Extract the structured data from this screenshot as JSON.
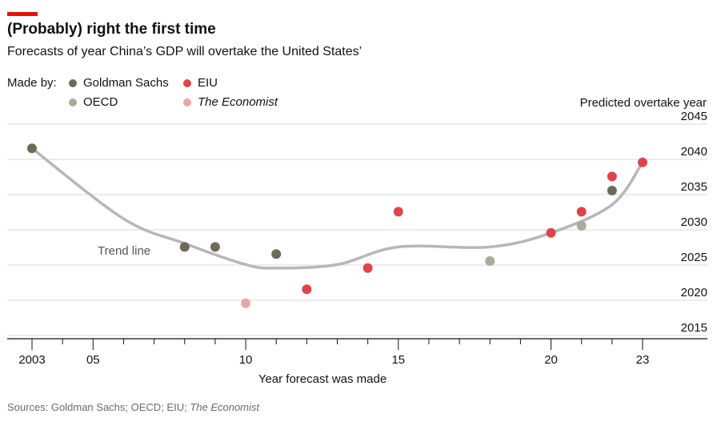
{
  "title": "(Probably) right the first time",
  "subtitle": "Forecasts of year China’s GDP will overtake the United States’",
  "legend": {
    "made_by_label": "Made by:",
    "items": [
      {
        "name": "Goldman Sachs",
        "color": "#6e6a58",
        "italic": false
      },
      {
        "name": "EIU",
        "color": "#e0444a",
        "italic": false
      },
      {
        "name": "OECD",
        "color": "#aeaa98",
        "italic": false
      },
      {
        "name": "The Economist",
        "color": "#e8a6a8",
        "italic": true
      }
    ]
  },
  "source": {
    "prefix": "Sources: Goldman Sachs; OECD; EIU; ",
    "italic": "The Economist"
  },
  "chart_data": {
    "type": "scatter",
    "title": "(Probably) right the first time",
    "xlabel": "Year forecast was made",
    "ylabel": "Predicted overtake year",
    "xlim": [
      2002,
      2024
    ],
    "ylim": [
      2013,
      2045
    ],
    "x_ticks": [
      2003,
      2005,
      2010,
      2015,
      2020,
      2023
    ],
    "x_tick_labels": [
      "2003",
      "05",
      "10",
      "15",
      "20",
      "23"
    ],
    "y_ticks": [
      2015,
      2020,
      2025,
      2030,
      2035,
      2040,
      2045
    ],
    "y_tick_labels": [
      "2015",
      "2020",
      "2025",
      "2030",
      "2035",
      "2040",
      "2045"
    ],
    "grid": "horizontal",
    "trend_label": "Trend line",
    "series": [
      {
        "name": "Goldman Sachs",
        "color": "#6e6a58",
        "points": [
          [
            2003,
            2041
          ],
          [
            2008,
            2027
          ],
          [
            2009,
            2027
          ],
          [
            2011,
            2026
          ],
          [
            2022,
            2035
          ]
        ]
      },
      {
        "name": "EIU",
        "color": "#e0444a",
        "points": [
          [
            2012,
            2021
          ],
          [
            2014,
            2024
          ],
          [
            2015,
            2032
          ],
          [
            2020,
            2029
          ],
          [
            2021,
            2032
          ],
          [
            2022,
            2037
          ],
          [
            2023,
            2039
          ]
        ]
      },
      {
        "name": "OECD",
        "color": "#aeaa98",
        "points": [
          [
            2018,
            2025
          ],
          [
            2021,
            2030
          ]
        ]
      },
      {
        "name": "The Economist",
        "color": "#e8a6a8",
        "points": [
          [
            2010,
            2019
          ]
        ]
      }
    ],
    "trend_line": [
      [
        2003,
        2041
      ],
      [
        2006,
        2031
      ],
      [
        2008,
        2027.5
      ],
      [
        2010,
        2024.5
      ],
      [
        2011,
        2024
      ],
      [
        2013,
        2024.5
      ],
      [
        2015,
        2027
      ],
      [
        2018,
        2027
      ],
      [
        2020,
        2029
      ],
      [
        2022,
        2033
      ],
      [
        2023,
        2039
      ]
    ]
  }
}
